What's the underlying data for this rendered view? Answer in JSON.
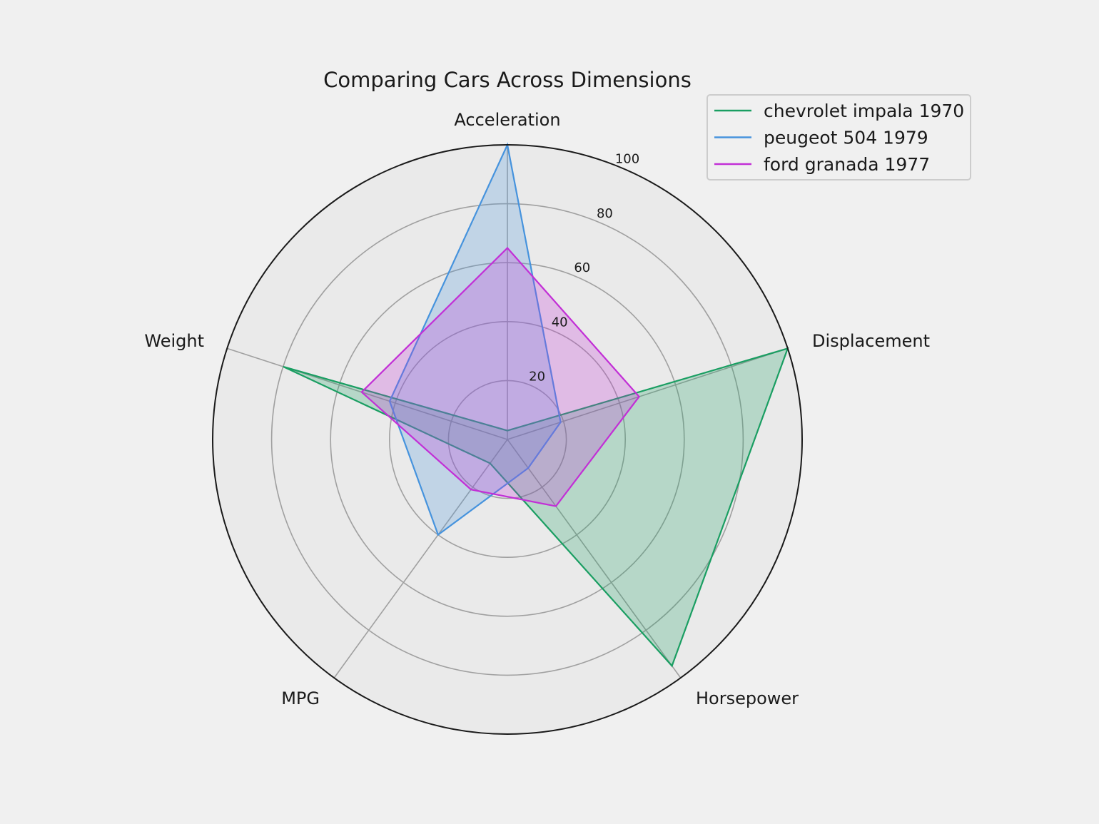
{
  "chart_data": {
    "type": "radar",
    "title": "Comparing Cars Across Dimensions",
    "axes": [
      "Acceleration",
      "Displacement",
      "Horsepower",
      "MPG",
      "Weight"
    ],
    "rlim": [
      0,
      100
    ],
    "r_ticks": [
      "20",
      "40",
      "60",
      "80",
      "100"
    ],
    "grid": true,
    "legend_position": "top-right",
    "series": [
      {
        "name": "chevrolet impala 1970",
        "color": "#1a9e62",
        "values": [
          3,
          100,
          95,
          10,
          80
        ]
      },
      {
        "name": "peugeot 504 1979",
        "color": "#4693dd",
        "values": [
          100,
          19,
          12,
          40,
          42
        ]
      },
      {
        "name": "ford granada 1977",
        "color": "#c22fd6",
        "values": [
          65,
          47,
          28,
          21,
          52
        ]
      }
    ]
  }
}
